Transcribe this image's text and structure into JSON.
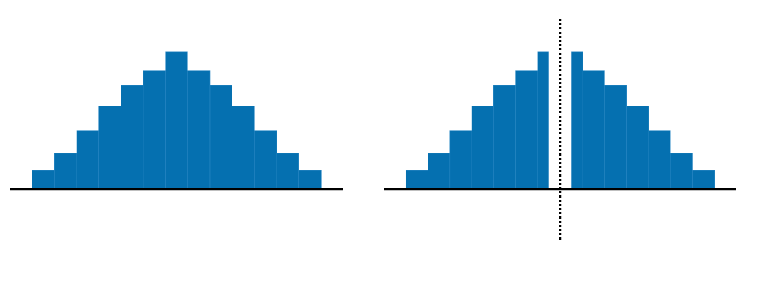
{
  "chart_data": [
    {
      "type": "histogram",
      "bins": [
        0,
        1,
        2,
        3,
        4,
        5,
        6,
        7,
        8,
        9,
        10,
        11,
        12,
        13
      ],
      "values": [
        1,
        1.9,
        3.1,
        4.4,
        5.5,
        6.3,
        7.3,
        6.3,
        5.5,
        4.4,
        3.1,
        1.9,
        1
      ],
      "color": "#0570b0",
      "xlim": [
        -1,
        14
      ],
      "ylim": [
        0,
        8
      ]
    },
    {
      "type": "histogram",
      "bins": [
        0,
        1,
        2,
        3,
        4,
        5,
        6,
        6.5,
        7,
        8,
        9,
        10,
        11,
        12,
        13
      ],
      "values": [
        1,
        1.9,
        3.1,
        4.4,
        5.5,
        6.3,
        7.3,
        7.3,
        6.3,
        5.5,
        4.4,
        3.1,
        1.9,
        1
      ],
      "color": "#0570b0",
      "xlim": [
        -1,
        14
      ],
      "ylim": [
        0,
        8
      ],
      "divider_x": 6.5
    }
  ]
}
